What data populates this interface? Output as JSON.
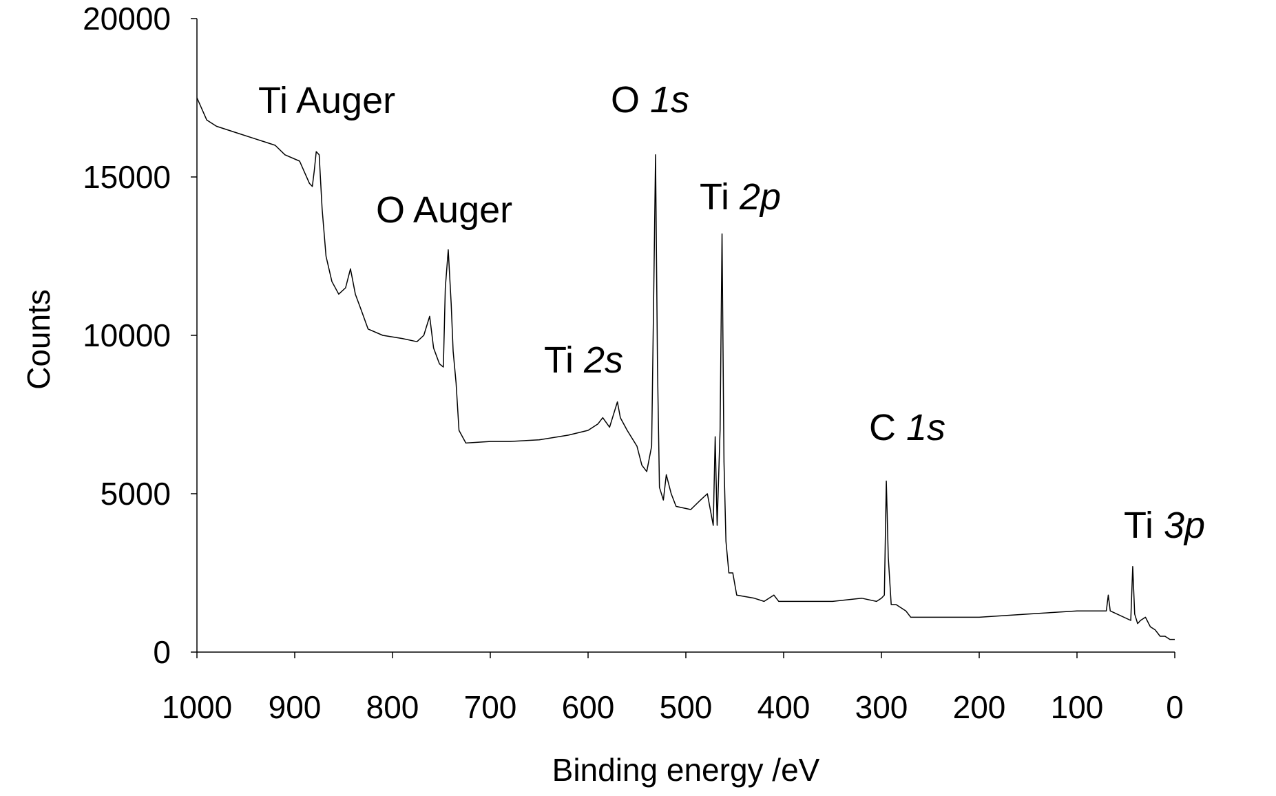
{
  "chart_data": {
    "type": "line",
    "x_label": "Binding energy /eV",
    "y_label": "Counts",
    "xlim": [
      1000,
      0
    ],
    "ylim": [
      0,
      20000
    ],
    "xticks": [
      1000,
      900,
      800,
      700,
      600,
      500,
      400,
      300,
      200,
      100,
      0
    ],
    "yticks": [
      0,
      5000,
      10000,
      15000,
      20000
    ],
    "grid": false,
    "annotations": [
      {
        "label": "Ti Auger"
      },
      {
        "label": "O Auger"
      },
      {
        "label": "O",
        "orbital": "1s"
      },
      {
        "label": "Ti",
        "orbital": "2p"
      },
      {
        "label": "Ti",
        "orbital": "2s"
      },
      {
        "label": "C",
        "orbital": "1s"
      },
      {
        "label": "Ti",
        "orbital": "3p"
      }
    ],
    "series": [
      {
        "color": "#000000",
        "x": [
          1000,
          990,
          980,
          960,
          940,
          920,
          910,
          895,
          885,
          882,
          880,
          878,
          875,
          872,
          868,
          862,
          855,
          848,
          843,
          838,
          832,
          825,
          810,
          790,
          775,
          768,
          762,
          758,
          752,
          748,
          746,
          743,
          740,
          738,
          735,
          732,
          725,
          700,
          680,
          650,
          620,
          600,
          590,
          585,
          578,
          574,
          570,
          567,
          560,
          550,
          545,
          540,
          535,
          533,
          531,
          529,
          527,
          523,
          520,
          515,
          510,
          495,
          485,
          478,
          472,
          470,
          468,
          465,
          463,
          461,
          459,
          456,
          452,
          448,
          430,
          420,
          410,
          405,
          380,
          350,
          320,
          305,
          300,
          297,
          295,
          293,
          290,
          285,
          280,
          275,
          270,
          250,
          200,
          150,
          100,
          85,
          70,
          68,
          66,
          45,
          43,
          41,
          38,
          35,
          30,
          25,
          20,
          15,
          10,
          5,
          0
        ],
        "values": [
          17500,
          16800,
          16600,
          16400,
          16200,
          16000,
          15700,
          15500,
          14800,
          14700,
          15200,
          15800,
          15700,
          14000,
          12500,
          11700,
          11300,
          11500,
          12100,
          11300,
          10800,
          10200,
          10000,
          9900,
          9800,
          10000,
          10600,
          9600,
          9100,
          9000,
          11500,
          12700,
          11000,
          9500,
          8500,
          7000,
          6600,
          6650,
          6650,
          6700,
          6850,
          7000,
          7200,
          7400,
          7100,
          7500,
          7900,
          7400,
          7000,
          6500,
          5900,
          5700,
          6500,
          11000,
          15700,
          9000,
          5200,
          4800,
          5600,
          5000,
          4600,
          4500,
          4800,
          5000,
          4000,
          6800,
          4000,
          7000,
          13200,
          6000,
          3500,
          2500,
          2500,
          1800,
          1700,
          1600,
          1800,
          1600,
          1600,
          1600,
          1700,
          1600,
          1700,
          1800,
          5400,
          3000,
          1500,
          1500,
          1400,
          1300,
          1100,
          1100,
          1100,
          1200,
          1300,
          1300,
          1300,
          1800,
          1300,
          1000,
          2700,
          1200,
          900,
          1000,
          1100,
          800,
          700,
          500,
          500,
          400,
          400
        ]
      }
    ]
  }
}
